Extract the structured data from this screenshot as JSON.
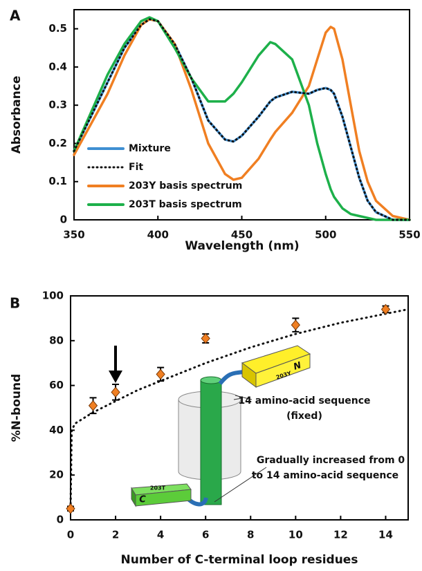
{
  "chart_data": [
    {
      "type": "line",
      "panel_label": "A",
      "x_label": "Wavelength (nm)",
      "y_label": "Absorbance",
      "x": [
        350,
        360,
        370,
        380,
        390,
        395,
        400,
        410,
        420,
        430,
        440,
        445,
        450,
        460,
        467,
        470,
        480,
        490,
        495,
        500,
        503,
        505,
        510,
        515,
        520,
        525,
        530,
        540,
        550
      ],
      "series": [
        {
          "name": "Mixture",
          "color": "#3f8fd2",
          "values": [
            0.18,
            0.27,
            0.36,
            0.45,
            0.51,
            0.525,
            0.52,
            0.46,
            0.37,
            0.26,
            0.21,
            0.205,
            0.22,
            0.27,
            0.31,
            0.32,
            0.335,
            0.33,
            0.34,
            0.345,
            0.34,
            0.33,
            0.27,
            0.19,
            0.11,
            0.05,
            0.02,
            0,
            0
          ]
        },
        {
          "name": "Fit",
          "color": "#111111",
          "dash": "dotted",
          "values": [
            0.18,
            0.27,
            0.36,
            0.45,
            0.51,
            0.525,
            0.52,
            0.46,
            0.37,
            0.26,
            0.21,
            0.205,
            0.22,
            0.27,
            0.31,
            0.32,
            0.335,
            0.33,
            0.34,
            0.345,
            0.34,
            0.33,
            0.27,
            0.19,
            0.11,
            0.05,
            0.02,
            0,
            0
          ]
        },
        {
          "name": "203Y basis spectrum",
          "color": "#f07f22",
          "values": [
            0.17,
            0.25,
            0.33,
            0.43,
            0.51,
            0.525,
            0.52,
            0.46,
            0.34,
            0.2,
            0.12,
            0.105,
            0.11,
            0.16,
            0.21,
            0.23,
            0.28,
            0.35,
            0.42,
            0.49,
            0.505,
            0.5,
            0.42,
            0.3,
            0.18,
            0.1,
            0.05,
            0.01,
            0
          ]
        },
        {
          "name": "203T basis spectrum",
          "color": "#1db04a",
          "values": [
            0.18,
            0.28,
            0.38,
            0.46,
            0.52,
            0.53,
            0.52,
            0.45,
            0.37,
            0.31,
            0.31,
            0.33,
            0.36,
            0.43,
            0.465,
            0.46,
            0.42,
            0.3,
            0.2,
            0.12,
            0.08,
            0.06,
            0.03,
            0.015,
            0.01,
            0.005,
            0,
            0,
            0
          ]
        }
      ],
      "xlim": [
        350,
        550
      ],
      "xticks": [
        350,
        400,
        450,
        500,
        550
      ],
      "ylim": [
        0,
        0.55
      ],
      "yticks": [
        0,
        0.1,
        0.2,
        0.3,
        0.4,
        0.5
      ]
    },
    {
      "type": "scatter",
      "panel_label": "B",
      "x_label": "Number of C-terminal loop residues",
      "y_label": "%N-bound",
      "x": [
        0,
        1,
        2,
        4,
        6,
        10,
        14
      ],
      "values": [
        5,
        51,
        57,
        65,
        81,
        87,
        94
      ],
      "errors": [
        1,
        3.5,
        3.5,
        3,
        2,
        3,
        1.5
      ],
      "color": "#f07f22",
      "curve": {
        "color": "#111111",
        "x": [
          0,
          0.05,
          0.2,
          1,
          2,
          3,
          4,
          6,
          8,
          10,
          12,
          14,
          15
        ],
        "values": [
          5,
          40,
          43,
          48,
          53,
          58,
          62,
          70,
          77,
          83,
          88,
          92,
          94
        ]
      },
      "xlim": [
        0,
        15
      ],
      "xticks": [
        0,
        2,
        4,
        6,
        8,
        10,
        12,
        14
      ],
      "ylim": [
        0,
        100
      ],
      "yticks": [
        0,
        20,
        40,
        60,
        80,
        100
      ],
      "annotations": [
        "14 amino-acid sequence",
        "(fixed)",
        "Gradually increased from 0",
        "to 14 amino-acid sequence"
      ],
      "schematic_labels": {
        "n_terminus": "N",
        "n_domain": "203Y",
        "c_terminus": "C",
        "c_domain": "203T"
      }
    }
  ]
}
